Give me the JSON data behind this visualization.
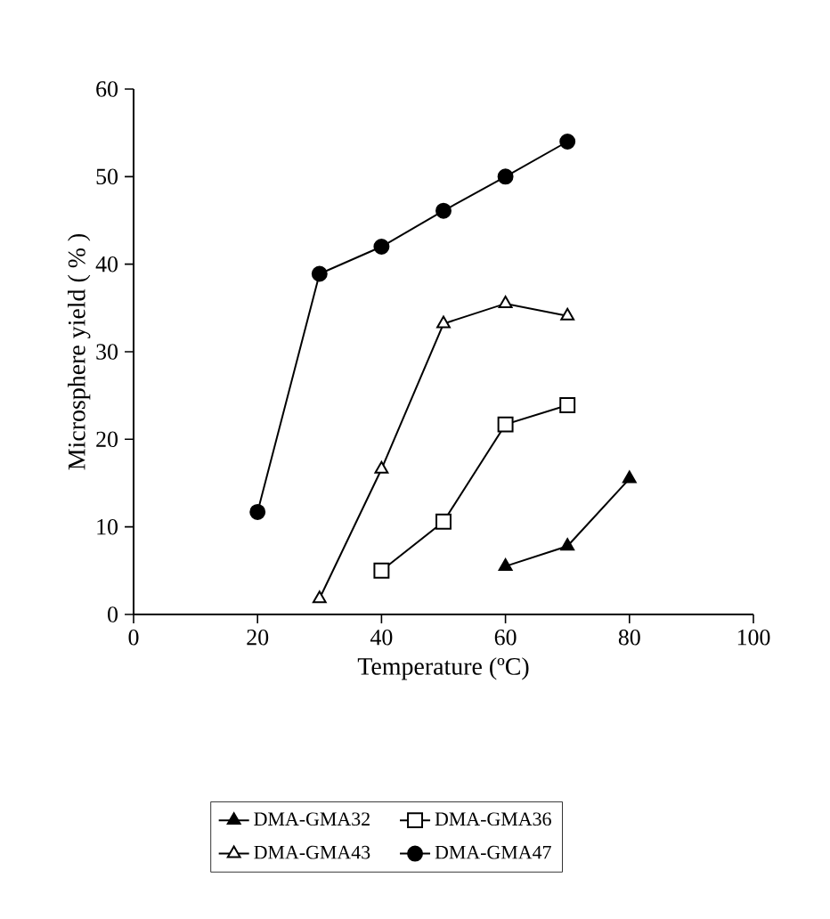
{
  "chart_data": {
    "type": "line",
    "xlabel": "Temperature (ºC)",
    "ylabel": "Microsphere yield ( % )",
    "xlim": [
      0,
      100
    ],
    "xticks": [
      0,
      20,
      40,
      60,
      80,
      100
    ],
    "ylim": [
      0,
      60
    ],
    "yticks": [
      0,
      10,
      20,
      30,
      40,
      50,
      60
    ],
    "grid": false,
    "legend": "bottom",
    "line_style": "solid",
    "series": [
      {
        "name": "DMA-GMA32",
        "color": "#000000",
        "marker": "triangle",
        "x": [
          60,
          70,
          80
        ],
        "values": [
          5.5,
          7.8,
          15.5
        ]
      },
      {
        "name": "DMA-GMA36",
        "color": "#000000",
        "marker": "square-open",
        "x": [
          40,
          50,
          60,
          70
        ],
        "values": [
          5.0,
          10.6,
          21.7,
          23.9
        ]
      },
      {
        "name": "DMA-GMA43",
        "color": "#000000",
        "marker": "triangle-open",
        "x": [
          30,
          40,
          50,
          60,
          70
        ],
        "values": [
          1.8,
          16.6,
          33.2,
          35.5,
          34.1
        ]
      },
      {
        "name": "DMA-GMA47",
        "color": "#000000",
        "marker": "circle",
        "x": [
          20,
          30,
          40,
          50,
          60,
          70
        ],
        "values": [
          11.7,
          38.9,
          42.0,
          46.1,
          50.0,
          54.0
        ]
      }
    ]
  }
}
